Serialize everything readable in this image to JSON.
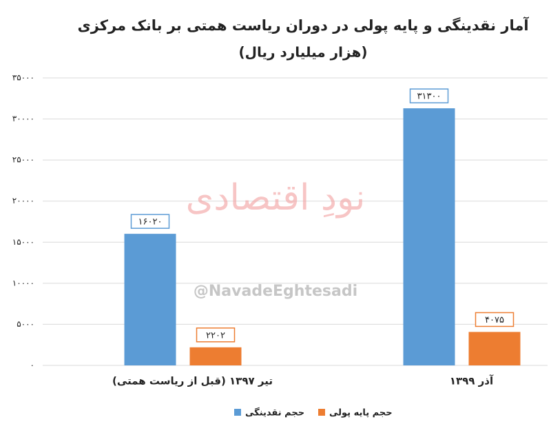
{
  "chart_data": {
    "type": "bar",
    "title": "آمار نقدینگی و پایه پولی در دوران ریاست همتی بر بانک مرکزی",
    "subtitle": "(هزار میلیارد ریال)",
    "categories": [
      "تیر ۱۳۹۷ (قبل از ریاست همتی)",
      "آذر ۱۳۹۹"
    ],
    "series": [
      {
        "name": "حجم نقدینگی",
        "color": "#5b9bd5",
        "values": [
          16020,
          31300
        ],
        "value_labels": [
          "۱۶۰۲۰",
          "۳۱۳۰۰"
        ]
      },
      {
        "name": "حجم پایه پولی",
        "color": "#ed7d31",
        "values": [
          2202,
          4075
        ],
        "value_labels": [
          "۲۲۰۲",
          "۴۰۷۵"
        ]
      }
    ],
    "ylim": [
      0,
      35000
    ],
    "yticks": [
      {
        "value": 0,
        "label": "۰"
      },
      {
        "value": 5000,
        "label": "۵۰۰۰"
      },
      {
        "value": 10000,
        "label": "۱۰۰۰۰"
      },
      {
        "value": 15000,
        "label": "۱۵۰۰۰"
      },
      {
        "value": 20000,
        "label": "۲۰۰۰۰"
      },
      {
        "value": 25000,
        "label": "۲۵۰۰۰"
      },
      {
        "value": 30000,
        "label": "۳۰۰۰۰"
      },
      {
        "value": 35000,
        "label": "۳۵۰۰۰"
      }
    ],
    "grid": true,
    "legend": "bottom",
    "watermark": [
      "نودِ اقتصادی",
      "@NavadeEghtesadi"
    ]
  }
}
